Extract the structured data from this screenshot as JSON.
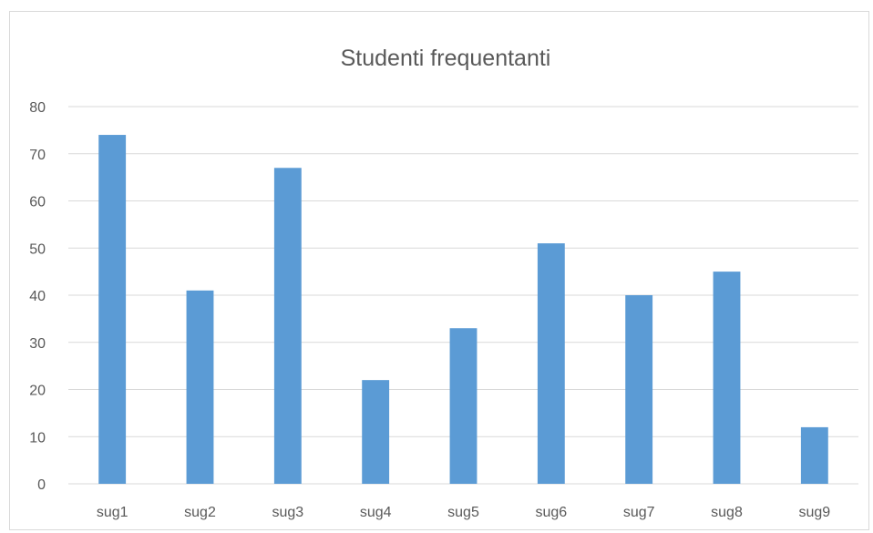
{
  "chart_data": {
    "type": "bar",
    "title": "Studenti frequentanti",
    "xlabel": "",
    "ylabel": "",
    "categories": [
      "sug1",
      "sug2",
      "sug3",
      "sug4",
      "sug5",
      "sug6",
      "sug7",
      "sug8",
      "sug9"
    ],
    "values": [
      74,
      41,
      67,
      22,
      33,
      51,
      40,
      45,
      12
    ],
    "ylim": [
      0,
      80
    ],
    "yticks": [
      0,
      10,
      20,
      30,
      40,
      50,
      60,
      70,
      80
    ],
    "grid": true,
    "legend": "none",
    "bar_color": "#5b9bd5",
    "grid_color": "#d9d9d9",
    "text_color": "#595959"
  }
}
